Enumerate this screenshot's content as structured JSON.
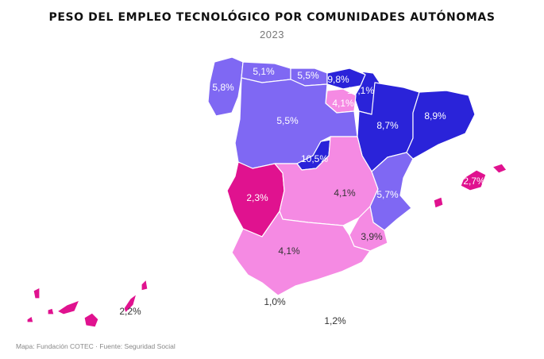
{
  "title": "PESO DEL EMPLEO TECNOLÓGICO POR COMUNIDADES AUTÓNOMAS",
  "subtitle": "2023",
  "source": "Mapa: Fundación COTEC · Fuente: Seguridad Social",
  "colors": {
    "dark_blue": "#2a23d9",
    "medium_purple": "#7f68f3",
    "light_pink": "#f58ae3",
    "magenta": "#e0128f",
    "border": "#ffffff"
  },
  "regions": [
    {
      "name": "Galicia",
      "value": "5,8%"
    },
    {
      "name": "Asturias",
      "value": "5,1%"
    },
    {
      "name": "Cantabria",
      "value": "5,5%"
    },
    {
      "name": "País Vasco",
      "value": "9,8%"
    },
    {
      "name": "Navarra",
      "value": "10,1%"
    },
    {
      "name": "La Rioja",
      "value": "4,1%"
    },
    {
      "name": "Aragón",
      "value": "8,7%"
    },
    {
      "name": "Cataluña",
      "value": "8,9%"
    },
    {
      "name": "Castilla y León",
      "value": "5,5%"
    },
    {
      "name": "Madrid",
      "value": "10,5%"
    },
    {
      "name": "Extremadura",
      "value": "2,3%"
    },
    {
      "name": "Castilla-La Mancha",
      "value": "4,1%"
    },
    {
      "name": "Comunidad Valenciana",
      "value": "5,7%"
    },
    {
      "name": "Islas Baleares",
      "value": "2,7%"
    },
    {
      "name": "Murcia",
      "value": "3,9%"
    },
    {
      "name": "Andalucía",
      "value": "4,1%"
    },
    {
      "name": "Canarias",
      "value": "2,2%"
    },
    {
      "name": "Ceuta",
      "value": "1,0%"
    },
    {
      "name": "Melilla",
      "value": "1,2%"
    }
  ]
}
